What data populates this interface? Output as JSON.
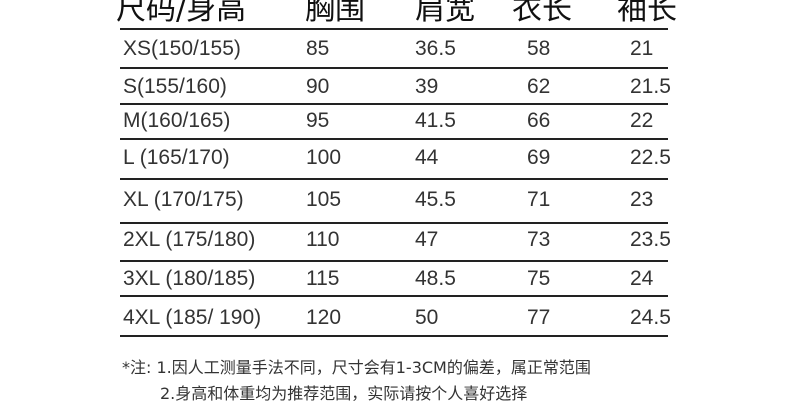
{
  "headers": [
    "尺码/身高",
    "胸围",
    "肩宽",
    "衣长",
    "袖长"
  ],
  "rows": [
    {
      "size": "XS(150/155)",
      "chest": "85",
      "shoulder": "36.5",
      "length": "58",
      "sleeve": "21"
    },
    {
      "size": "S(155/160)",
      "chest": "90",
      "shoulder": "39",
      "length": "62",
      "sleeve": "21.5"
    },
    {
      "size": "M(160/165)",
      "chest": "95",
      "shoulder": "41.5",
      "length": "66",
      "sleeve": "22"
    },
    {
      "size": "L (165/170)",
      "chest": "100",
      "shoulder": "44",
      "length": "69",
      "sleeve": "22.5"
    },
    {
      "size": "XL (170/175)",
      "chest": "105",
      "shoulder": "45.5",
      "length": "71",
      "sleeve": "23"
    },
    {
      "size": "2XL (175/180)",
      "chest": "110",
      "shoulder": "47",
      "length": "73",
      "sleeve": "23.5"
    },
    {
      "size": "3XL (180/185)",
      "chest": "115",
      "shoulder": "48.5",
      "length": "75",
      "sleeve": "24"
    },
    {
      "size": "4XL (185/ 190)",
      "chest": "120",
      "shoulder": "50",
      "length": "77",
      "sleeve": "24.5"
    }
  ],
  "notes": {
    "line1": "*注: 1.因人工测量手法不同，尺寸会有1-3CM的偏差，属正常范围",
    "line2": "2.身高和体重均为推荐范围，实际请按个人喜好选择"
  }
}
